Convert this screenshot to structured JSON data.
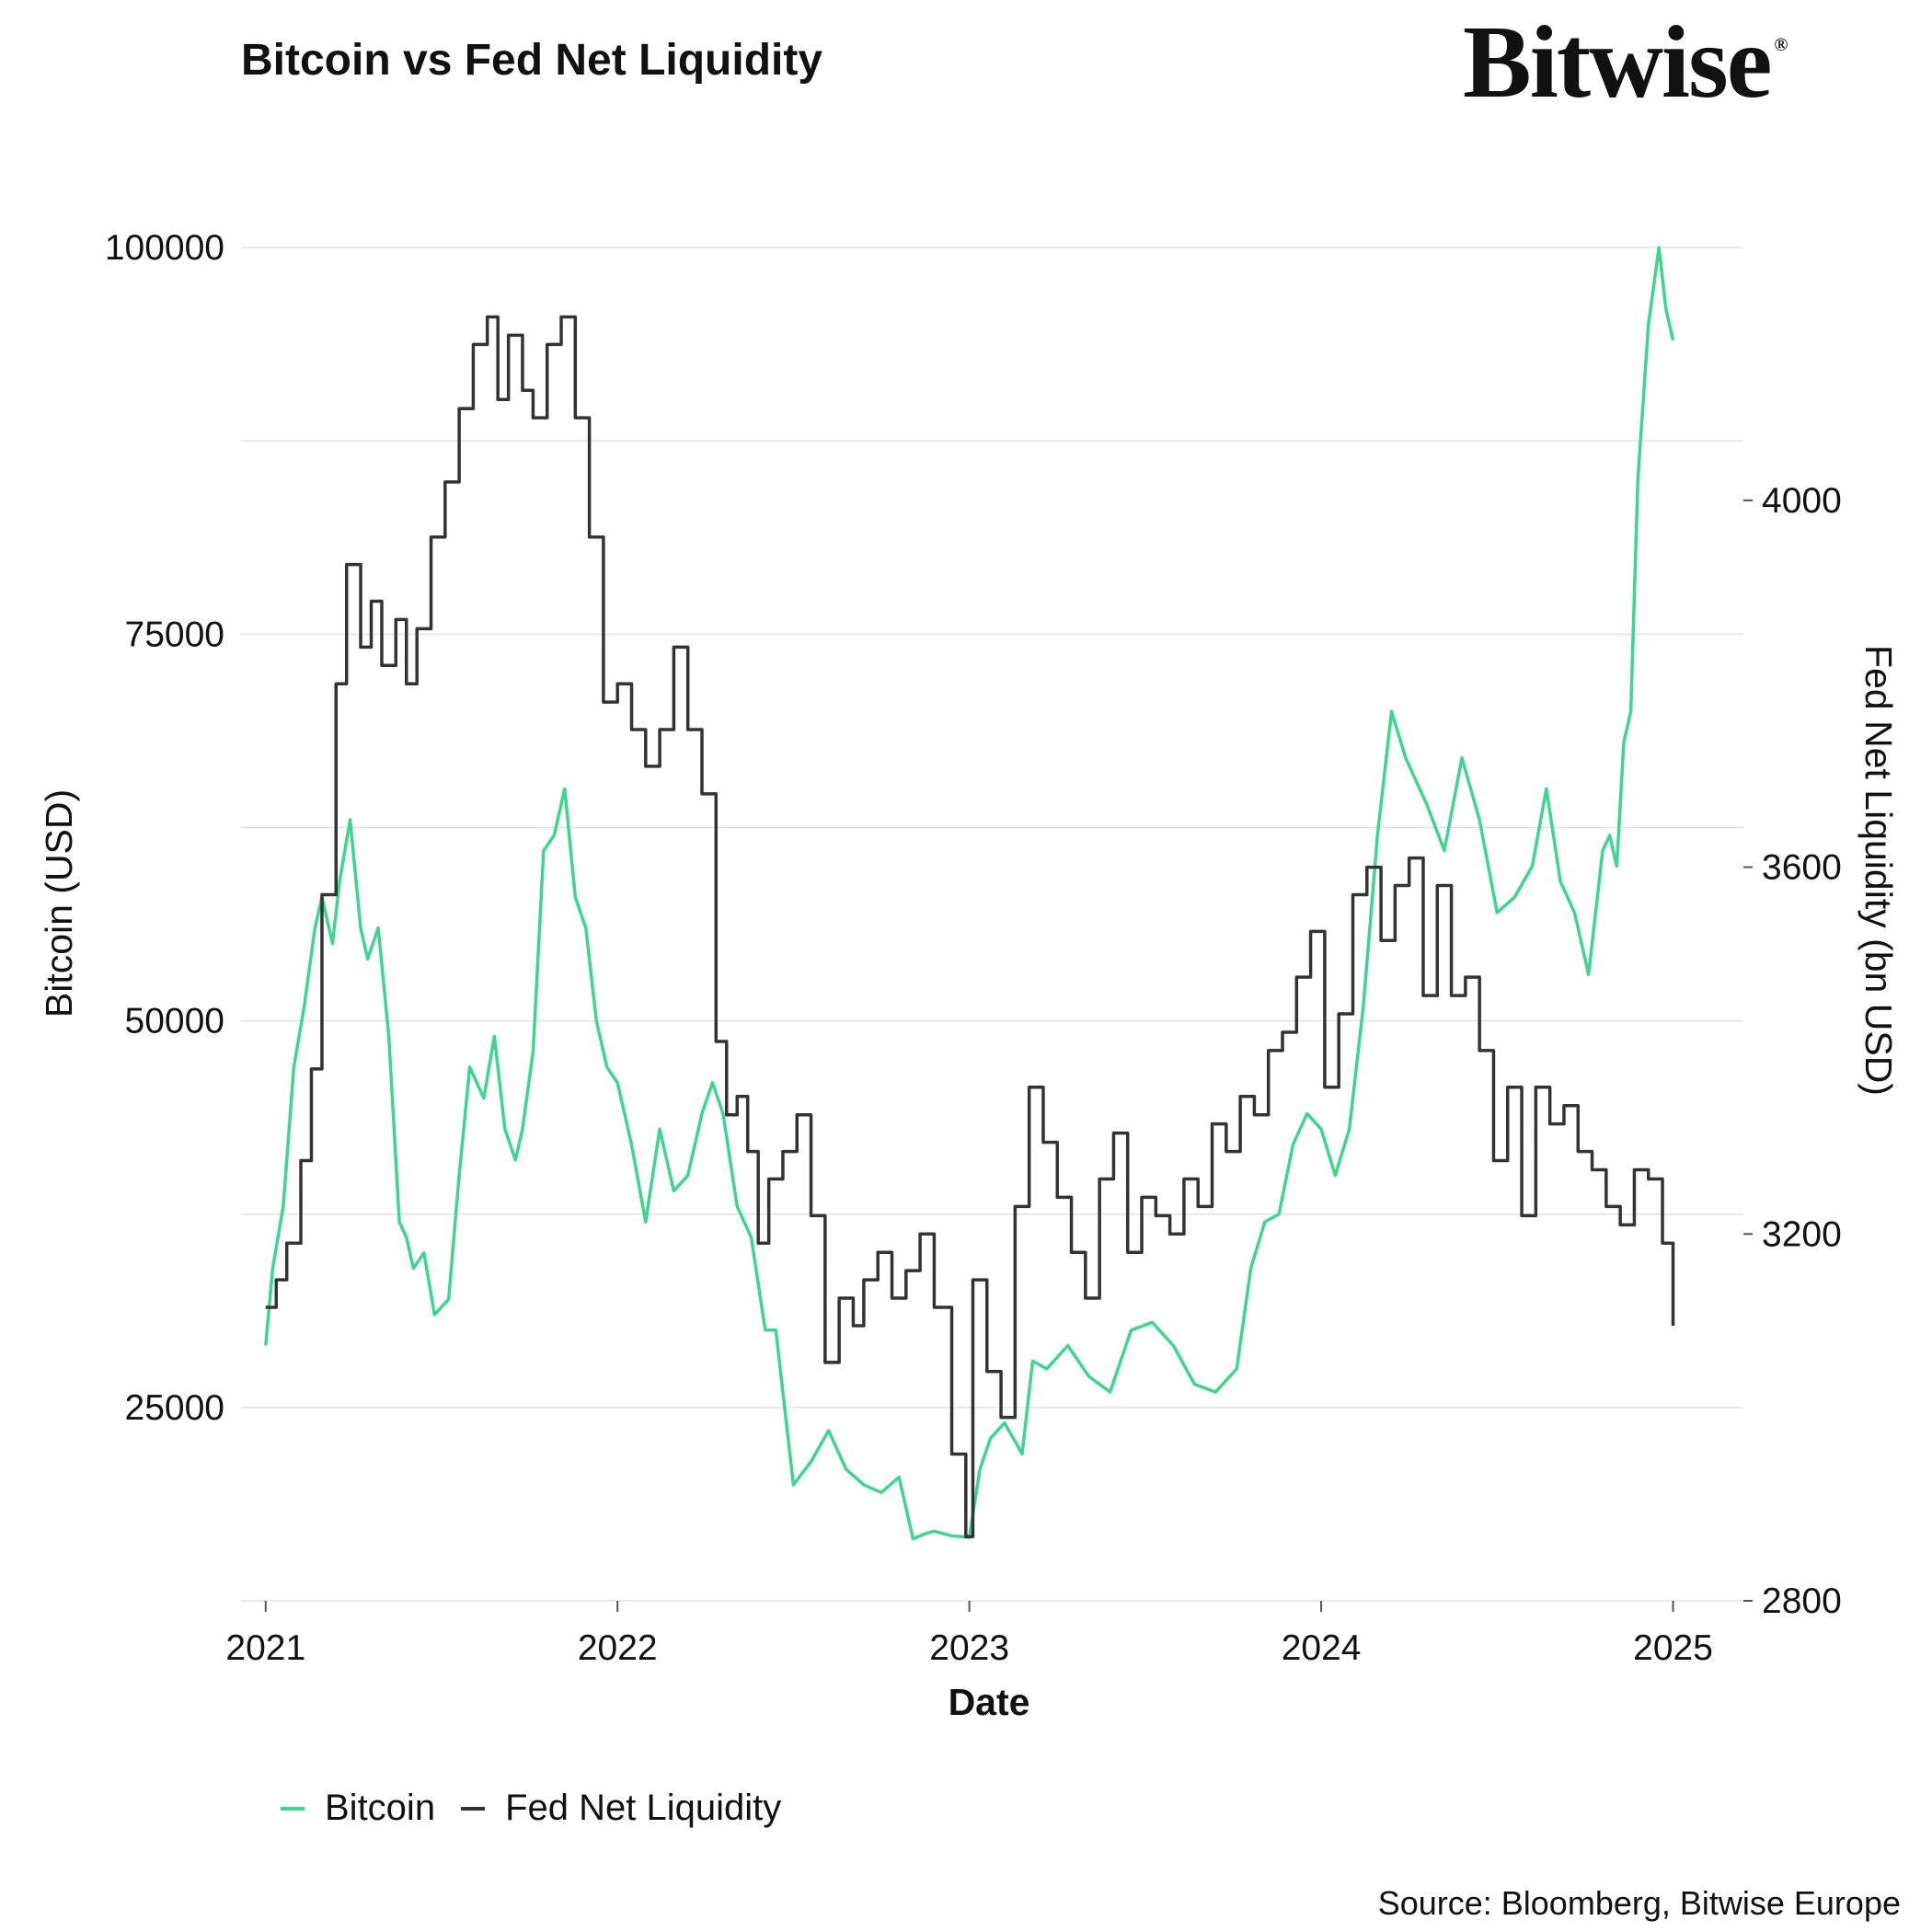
{
  "header": {
    "title": "Bitcoin vs Fed Net Liquidity",
    "logo_text": "Bitwise",
    "logo_mark": "®"
  },
  "footer": {
    "source": "Source: Bloomberg, Bitwise Europe"
  },
  "legend": [
    {
      "label": "Bitcoin",
      "color": "#3dd68c"
    },
    {
      "label": "Fed Net Liquidity",
      "color": "#333333"
    }
  ],
  "chart_data": {
    "type": "line",
    "title": "Bitcoin vs Fed Net Liquidity",
    "xlabel": "Date",
    "ylabel": "Bitcoin (USD)",
    "y2label": "Fed Net Liquidity (bn USD)",
    "xlim": [
      2020.93,
      2025.2
    ],
    "ylim": [
      12500,
      105000
    ],
    "y2lim": [
      2800,
      4360
    ],
    "x_ticks": [
      2021,
      2022,
      2023,
      2024,
      2025
    ],
    "x_tick_labels": [
      "2021",
      "2022",
      "2023",
      "2024",
      "2025"
    ],
    "y_ticks": [
      25000,
      50000,
      75000,
      100000
    ],
    "y_tick_labels": [
      "25000",
      "50000",
      "75000",
      "100000"
    ],
    "y2_ticks": [
      2800,
      3200,
      3600,
      4000
    ],
    "y2_tick_labels": [
      "2800",
      "3200",
      "3600",
      "4000"
    ],
    "grid": true,
    "legend_position": "bottom-left",
    "series": [
      {
        "name": "Bitcoin",
        "axis": "left",
        "color": "#3dd68c",
        "x": [
          2021.0,
          2021.02,
          2021.05,
          2021.08,
          2021.11,
          2021.14,
          2021.16,
          2021.19,
          2021.21,
          2021.24,
          2021.27,
          2021.29,
          2021.32,
          2021.35,
          2021.38,
          2021.4,
          2021.42,
          2021.45,
          2021.48,
          2021.52,
          2021.55,
          2021.58,
          2021.62,
          2021.65,
          2021.68,
          2021.71,
          2021.73,
          2021.76,
          2021.79,
          2021.82,
          2021.85,
          2021.88,
          2021.91,
          2021.94,
          2021.97,
          2022.0,
          2022.04,
          2022.08,
          2022.12,
          2022.16,
          2022.2,
          2022.24,
          2022.27,
          2022.3,
          2022.34,
          2022.38,
          2022.42,
          2022.45,
          2022.5,
          2022.55,
          2022.6,
          2022.65,
          2022.7,
          2022.75,
          2022.8,
          2022.84,
          2022.87,
          2022.9,
          2022.95,
          2023.0,
          2023.03,
          2023.06,
          2023.1,
          2023.15,
          2023.18,
          2023.22,
          2023.28,
          2023.34,
          2023.4,
          2023.46,
          2023.52,
          2023.58,
          2023.64,
          2023.7,
          2023.76,
          2023.8,
          2023.84,
          2023.88,
          2023.92,
          2023.96,
          2024.0,
          2024.04,
          2024.08,
          2024.12,
          2024.16,
          2024.2,
          2024.24,
          2024.3,
          2024.35,
          2024.4,
          2024.45,
          2024.5,
          2024.55,
          2024.6,
          2024.64,
          2024.68,
          2024.72,
          2024.76,
          2024.8,
          2024.82,
          2024.84,
          2024.86,
          2024.88,
          2024.9,
          2024.93,
          2024.96,
          2024.98,
          2025.0
        ],
        "values": [
          29000,
          34000,
          38000,
          47000,
          51000,
          56000,
          58000,
          55000,
          59000,
          63000,
          56000,
          54000,
          56000,
          49000,
          37000,
          36000,
          34000,
          35000,
          31000,
          32000,
          40000,
          47000,
          45000,
          49000,
          43000,
          41000,
          43000,
          48000,
          61000,
          62000,
          65000,
          58000,
          56000,
          50000,
          47000,
          46000,
          42000,
          37000,
          43000,
          39000,
          40000,
          44000,
          46000,
          44000,
          38000,
          36000,
          30000,
          30000,
          20000,
          21500,
          23500,
          21000,
          20000,
          19500,
          20500,
          16500,
          16800,
          17000,
          16700,
          16600,
          21000,
          23000,
          24000,
          22000,
          28000,
          27500,
          29000,
          27000,
          26000,
          30000,
          30500,
          29000,
          26500,
          26000,
          27500,
          34000,
          37000,
          37500,
          42000,
          44000,
          43000,
          40000,
          43000,
          51000,
          62000,
          70000,
          67000,
          64000,
          61000,
          67000,
          63000,
          57000,
          58000,
          60000,
          65000,
          59000,
          57000,
          53000,
          61000,
          62000,
          60000,
          68000,
          70000,
          85000,
          95000,
          100000,
          96000,
          94000
        ]
      },
      {
        "name": "Fed Net Liquidity",
        "axis": "right",
        "color": "#333333",
        "x": [
          2021.0,
          2021.03,
          2021.06,
          2021.1,
          2021.13,
          2021.16,
          2021.2,
          2021.23,
          2021.27,
          2021.3,
          2021.33,
          2021.37,
          2021.4,
          2021.43,
          2021.47,
          2021.51,
          2021.55,
          2021.59,
          2021.63,
          2021.66,
          2021.69,
          2021.73,
          2021.76,
          2021.8,
          2021.84,
          2021.88,
          2021.92,
          2021.96,
          2022.0,
          2022.04,
          2022.08,
          2022.12,
          2022.16,
          2022.2,
          2022.24,
          2022.28,
          2022.31,
          2022.34,
          2022.37,
          2022.4,
          2022.43,
          2022.47,
          2022.51,
          2022.55,
          2022.59,
          2022.63,
          2022.67,
          2022.7,
          2022.74,
          2022.78,
          2022.82,
          2022.86,
          2022.9,
          2022.95,
          2022.99,
          2023.01,
          2023.05,
          2023.09,
          2023.13,
          2023.17,
          2023.21,
          2023.25,
          2023.29,
          2023.33,
          2023.37,
          2023.41,
          2023.45,
          2023.49,
          2023.53,
          2023.57,
          2023.61,
          2023.65,
          2023.69,
          2023.73,
          2023.77,
          2023.81,
          2023.85,
          2023.89,
          2023.93,
          2023.97,
          2024.01,
          2024.05,
          2024.09,
          2024.13,
          2024.17,
          2024.21,
          2024.25,
          2024.29,
          2024.33,
          2024.37,
          2024.41,
          2024.45,
          2024.49,
          2024.53,
          2024.57,
          2024.61,
          2024.65,
          2024.69,
          2024.73,
          2024.77,
          2024.81,
          2024.85,
          2024.89,
          2024.93,
          2024.97,
          2025.0
        ],
        "values": [
          3120,
          3150,
          3190,
          3280,
          3380,
          3570,
          3800,
          3930,
          3840,
          3890,
          3820,
          3870,
          3800,
          3860,
          3960,
          4020,
          4100,
          4170,
          4200,
          4110,
          4180,
          4120,
          4090,
          4170,
          4200,
          4090,
          3960,
          3780,
          3800,
          3750,
          3710,
          3750,
          3840,
          3750,
          3680,
          3410,
          3330,
          3350,
          3290,
          3190,
          3260,
          3290,
          3330,
          3220,
          3060,
          3130,
          3100,
          3150,
          3180,
          3130,
          3160,
          3200,
          3120,
          2960,
          2870,
          3150,
          3050,
          3000,
          3230,
          3360,
          3300,
          3240,
          3180,
          3130,
          3260,
          3310,
          3180,
          3240,
          3220,
          3200,
          3260,
          3230,
          3320,
          3290,
          3350,
          3330,
          3400,
          3420,
          3480,
          3530,
          3360,
          3440,
          3570,
          3600,
          3520,
          3580,
          3610,
          3460,
          3580,
          3460,
          3480,
          3400,
          3280,
          3360,
          3220,
          3360,
          3320,
          3340,
          3290,
          3270,
          3230,
          3210,
          3270,
          3260,
          3190,
          3100
        ]
      }
    ]
  }
}
